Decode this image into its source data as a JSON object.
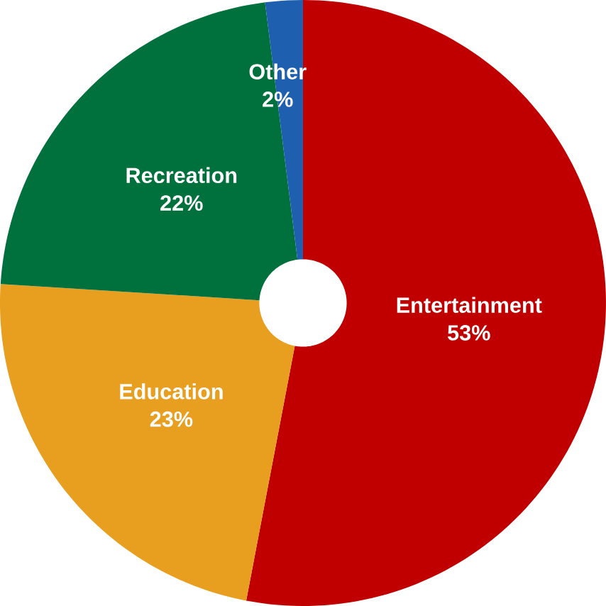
{
  "chart_data": {
    "type": "donut",
    "categories": [
      "Entertainment",
      "Education",
      "Recreation",
      "Other"
    ],
    "values": [
      53,
      23,
      22,
      2
    ],
    "value_labels": [
      "53%",
      "23%",
      "22%",
      "2%"
    ],
    "colors": [
      "#c00000",
      "#e89e1f",
      "#00703c",
      "#1f5fb0"
    ]
  }
}
